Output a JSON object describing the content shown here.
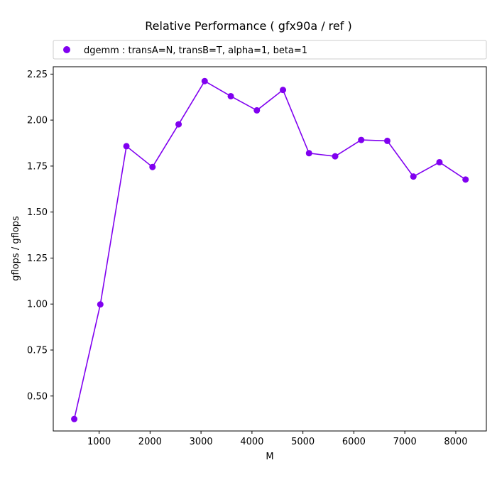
{
  "chart_data": {
    "type": "line",
    "title": "Relative Performance ( gfx90a /  ref )",
    "xlabel": "M",
    "ylabel": "gflops / gflops",
    "xlim": [
      100,
      8600
    ],
    "ylim": [
      0.31,
      2.29
    ],
    "xticks": [
      1000,
      2000,
      3000,
      4000,
      5000,
      6000,
      7000,
      8000
    ],
    "xtick_labels": [
      "1000",
      "2000",
      "3000",
      "4000",
      "5000",
      "6000",
      "7000",
      "8000"
    ],
    "yticks": [
      0.5,
      0.75,
      1.0,
      1.25,
      1.5,
      1.75,
      2.0,
      2.25
    ],
    "ytick_labels": [
      "0.50",
      "0.75",
      "1.00",
      "1.25",
      "1.50",
      "1.75",
      "2.00",
      "2.25"
    ],
    "grid": false,
    "legend_position": "top",
    "series": [
      {
        "name": "dgemm :  transA=N, transB=T, alpha=1, beta=1",
        "color": "#8000f0",
        "marker": "circle",
        "x": [
          512,
          1024,
          1536,
          2048,
          2560,
          3072,
          3584,
          4096,
          4608,
          5120,
          5632,
          6144,
          6656,
          7168,
          7680,
          8192
        ],
        "y": [
          0.375,
          0.998,
          1.858,
          1.745,
          1.977,
          2.212,
          2.13,
          2.053,
          2.164,
          1.82,
          1.803,
          1.892,
          1.887,
          1.693,
          1.771,
          1.677
        ]
      }
    ]
  }
}
